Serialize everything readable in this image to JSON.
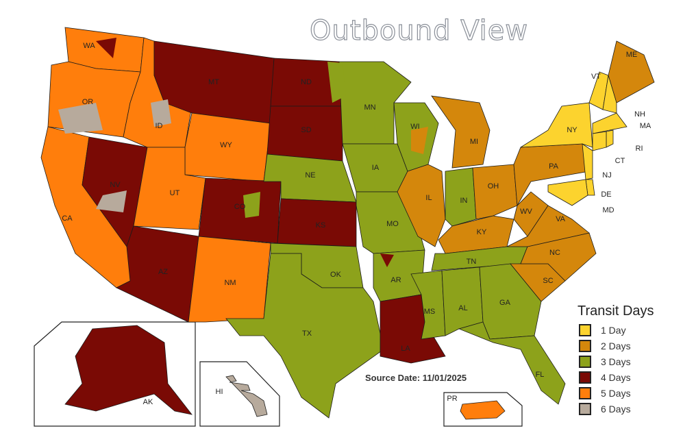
{
  "title": "Outbound View",
  "source_date": "Source Date: 11/01/2025",
  "legend": {
    "title": "Transit Days",
    "items": [
      {
        "label": "1 Day",
        "days": 1,
        "color": "#fcd32e"
      },
      {
        "label": "2 Days",
        "days": 2,
        "color": "#d4870c"
      },
      {
        "label": "3 Days",
        "days": 3,
        "color": "#8da21b"
      },
      {
        "label": "4 Days",
        "days": 4,
        "color": "#7a0a05"
      },
      {
        "label": "5 Days",
        "days": 5,
        "color": "#ff7e0c"
      },
      {
        "label": "6 Days",
        "days": 6,
        "color": "#b7aa9c"
      }
    ]
  },
  "states": [
    {
      "code": "WA",
      "days": 5
    },
    {
      "code": "OR",
      "days": 5
    },
    {
      "code": "CA",
      "days": 5
    },
    {
      "code": "NV",
      "days": 4
    },
    {
      "code": "ID",
      "days": 5
    },
    {
      "code": "MT",
      "days": 4
    },
    {
      "code": "WY",
      "days": 5
    },
    {
      "code": "UT",
      "days": 5
    },
    {
      "code": "CO",
      "days": 4
    },
    {
      "code": "AZ",
      "days": 4
    },
    {
      "code": "NM",
      "days": 5
    },
    {
      "code": "ND",
      "days": 4
    },
    {
      "code": "SD",
      "days": 4
    },
    {
      "code": "NE",
      "days": 3
    },
    {
      "code": "KS",
      "days": 4
    },
    {
      "code": "OK",
      "days": 3
    },
    {
      "code": "TX",
      "days": 3
    },
    {
      "code": "MN",
      "days": 3
    },
    {
      "code": "IA",
      "days": 3
    },
    {
      "code": "MO",
      "days": 3
    },
    {
      "code": "AR",
      "days": 3
    },
    {
      "code": "LA",
      "days": 4
    },
    {
      "code": "WI",
      "days": 3
    },
    {
      "code": "IL",
      "days": 2
    },
    {
      "code": "MI",
      "days": 2
    },
    {
      "code": "IN",
      "days": 3
    },
    {
      "code": "OH",
      "days": 2
    },
    {
      "code": "KY",
      "days": 2
    },
    {
      "code": "TN",
      "days": 3
    },
    {
      "code": "MS",
      "days": 3
    },
    {
      "code": "AL",
      "days": 3
    },
    {
      "code": "GA",
      "days": 3
    },
    {
      "code": "FL",
      "days": 3
    },
    {
      "code": "SC",
      "days": 2
    },
    {
      "code": "NC",
      "days": 2
    },
    {
      "code": "VA",
      "days": 2
    },
    {
      "code": "WV",
      "days": 2
    },
    {
      "code": "PA",
      "days": 2
    },
    {
      "code": "NY",
      "days": 1
    },
    {
      "code": "VT",
      "days": 1
    },
    {
      "code": "ME",
      "days": 2
    },
    {
      "code": "NH",
      "days": 1
    },
    {
      "code": "MA",
      "days": 1
    },
    {
      "code": "RI",
      "days": 1
    },
    {
      "code": "CT",
      "days": 1
    },
    {
      "code": "NJ",
      "days": 1
    },
    {
      "code": "DE",
      "days": 1
    },
    {
      "code": "MD",
      "days": 1
    },
    {
      "code": "AK",
      "days": 4
    },
    {
      "code": "HI",
      "days": 6
    },
    {
      "code": "PR",
      "days": 5
    }
  ]
}
